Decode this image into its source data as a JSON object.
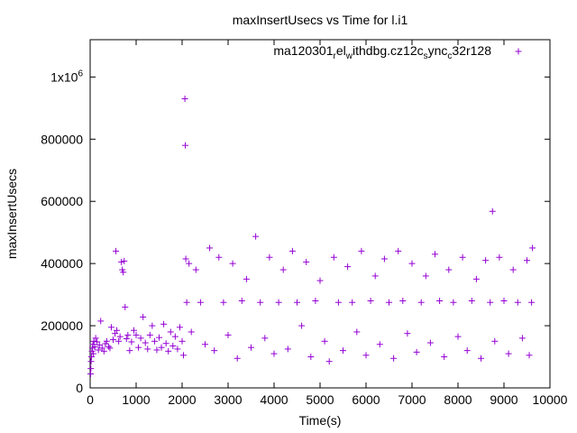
{
  "chart_data": {
    "type": "scatter",
    "title": "maxInsertUsecs vs Time for l.i1",
    "xlabel": "Time(s)",
    "ylabel": "maxInsertUsecs",
    "xlim": [
      0,
      10000
    ],
    "ylim": [
      0,
      1120000
    ],
    "x_ticks": [
      0,
      1000,
      2000,
      3000,
      4000,
      5000,
      6000,
      7000,
      8000,
      9000,
      10000
    ],
    "x_tick_labels": [
      "0",
      "1000",
      "2000",
      "3000",
      "4000",
      "5000",
      "6000",
      "7000",
      "8000",
      "9000",
      "10000"
    ],
    "y_ticks": [
      0,
      200000,
      400000,
      600000,
      800000,
      1000000
    ],
    "y_tick_labels": [
      "0",
      "200000",
      "400000",
      "600000",
      "800000"
    ],
    "y_top_tick_label": {
      "base": "1x10",
      "exponent": "6"
    },
    "grid": false,
    "legend_position": "top-right",
    "legend_label": {
      "parts": [
        "ma120301",
        "r",
        "el",
        "w",
        "ithdbg.cz12c",
        "s",
        "ync",
        "c",
        "32r128"
      ],
      "subscript": [
        false,
        true,
        false,
        true,
        false,
        true,
        false,
        true,
        false
      ]
    },
    "marker": "plus",
    "color": "#9400d3",
    "series": [
      {
        "name": "ma120301_rel_withdbg.cz12c_sync_c32r128",
        "points": [
          [
            10,
            45000
          ],
          [
            15,
            62000
          ],
          [
            20,
            85000
          ],
          [
            30,
            100000
          ],
          [
            40,
            118000
          ],
          [
            50,
            128000
          ],
          [
            60,
            140000
          ],
          [
            70,
            110000
          ],
          [
            80,
            150000
          ],
          [
            100,
            132000
          ],
          [
            120,
            160000
          ],
          [
            150,
            148000
          ],
          [
            180,
            122000
          ],
          [
            200,
            138000
          ],
          [
            230,
            215000
          ],
          [
            260,
            128000
          ],
          [
            300,
            118000
          ],
          [
            330,
            142000
          ],
          [
            360,
            150000
          ],
          [
            400,
            133000
          ],
          [
            430,
            128000
          ],
          [
            460,
            195000
          ],
          [
            500,
            155000
          ],
          [
            540,
            175000
          ],
          [
            560,
            440000
          ],
          [
            580,
            185000
          ],
          [
            620,
            150000
          ],
          [
            650,
            165000
          ],
          [
            680,
            405000
          ],
          [
            700,
            380000
          ],
          [
            720,
            372000
          ],
          [
            740,
            408000
          ],
          [
            760,
            260000
          ],
          [
            790,
            158000
          ],
          [
            820,
            170000
          ],
          [
            860,
            120000
          ],
          [
            900,
            148000
          ],
          [
            950,
            185000
          ],
          [
            1000,
            170000
          ],
          [
            1050,
            130000
          ],
          [
            1100,
            160000
          ],
          [
            1150,
            228000
          ],
          [
            1200,
            145000
          ],
          [
            1250,
            125000
          ],
          [
            1300,
            170000
          ],
          [
            1350,
            200000
          ],
          [
            1400,
            150000
          ],
          [
            1450,
            122000
          ],
          [
            1500,
            162000
          ],
          [
            1550,
            130000
          ],
          [
            1600,
            205000
          ],
          [
            1650,
            143000
          ],
          [
            1700,
            118000
          ],
          [
            1750,
            180000
          ],
          [
            1800,
            135000
          ],
          [
            1850,
            165000
          ],
          [
            1900,
            125000
          ],
          [
            1950,
            195000
          ],
          [
            2000,
            150000
          ],
          [
            2030,
            105000
          ],
          [
            2060,
            930000
          ],
          [
            2070,
            780000
          ],
          [
            2080,
            415000
          ],
          [
            2100,
            275000
          ],
          [
            2150,
            400000
          ],
          [
            2200,
            180000
          ],
          [
            2300,
            380000
          ],
          [
            2400,
            275000
          ],
          [
            2500,
            140000
          ],
          [
            2600,
            450000
          ],
          [
            2700,
            120000
          ],
          [
            2800,
            420000
          ],
          [
            2900,
            275000
          ],
          [
            3000,
            170000
          ],
          [
            3100,
            400000
          ],
          [
            3200,
            95000
          ],
          [
            3300,
            280000
          ],
          [
            3400,
            350000
          ],
          [
            3500,
            130000
          ],
          [
            3600,
            487000
          ],
          [
            3700,
            275000
          ],
          [
            3800,
            160000
          ],
          [
            3900,
            420000
          ],
          [
            4000,
            110000
          ],
          [
            4100,
            275000
          ],
          [
            4200,
            380000
          ],
          [
            4300,
            125000
          ],
          [
            4400,
            440000
          ],
          [
            4500,
            275000
          ],
          [
            4600,
            200000
          ],
          [
            4700,
            405000
          ],
          [
            4800,
            100000
          ],
          [
            4900,
            280000
          ],
          [
            5000,
            345000
          ],
          [
            5100,
            150000
          ],
          [
            5200,
            85000
          ],
          [
            5300,
            420000
          ],
          [
            5400,
            275000
          ],
          [
            5500,
            120000
          ],
          [
            5600,
            390000
          ],
          [
            5700,
            275000
          ],
          [
            5800,
            180000
          ],
          [
            5900,
            440000
          ],
          [
            6000,
            105000
          ],
          [
            6100,
            280000
          ],
          [
            6200,
            360000
          ],
          [
            6300,
            140000
          ],
          [
            6400,
            415000
          ],
          [
            6500,
            275000
          ],
          [
            6600,
            95000
          ],
          [
            6700,
            440000
          ],
          [
            6800,
            280000
          ],
          [
            6900,
            175000
          ],
          [
            7000,
            400000
          ],
          [
            7100,
            115000
          ],
          [
            7200,
            275000
          ],
          [
            7300,
            360000
          ],
          [
            7400,
            145000
          ],
          [
            7500,
            430000
          ],
          [
            7600,
            280000
          ],
          [
            7700,
            100000
          ],
          [
            7800,
            380000
          ],
          [
            7900,
            275000
          ],
          [
            8000,
            165000
          ],
          [
            8100,
            420000
          ],
          [
            8200,
            120000
          ],
          [
            8300,
            280000
          ],
          [
            8400,
            350000
          ],
          [
            8500,
            95000
          ],
          [
            8600,
            410000
          ],
          [
            8700,
            275000
          ],
          [
            8750,
            568000
          ],
          [
            8800,
            150000
          ],
          [
            8900,
            420000
          ],
          [
            9000,
            280000
          ],
          [
            9100,
            110000
          ],
          [
            9200,
            380000
          ],
          [
            9300,
            275000
          ],
          [
            9400,
            160000
          ],
          [
            9500,
            410000
          ],
          [
            9550,
            105000
          ],
          [
            9600,
            275000
          ],
          [
            9620,
            450000
          ]
        ]
      }
    ]
  }
}
